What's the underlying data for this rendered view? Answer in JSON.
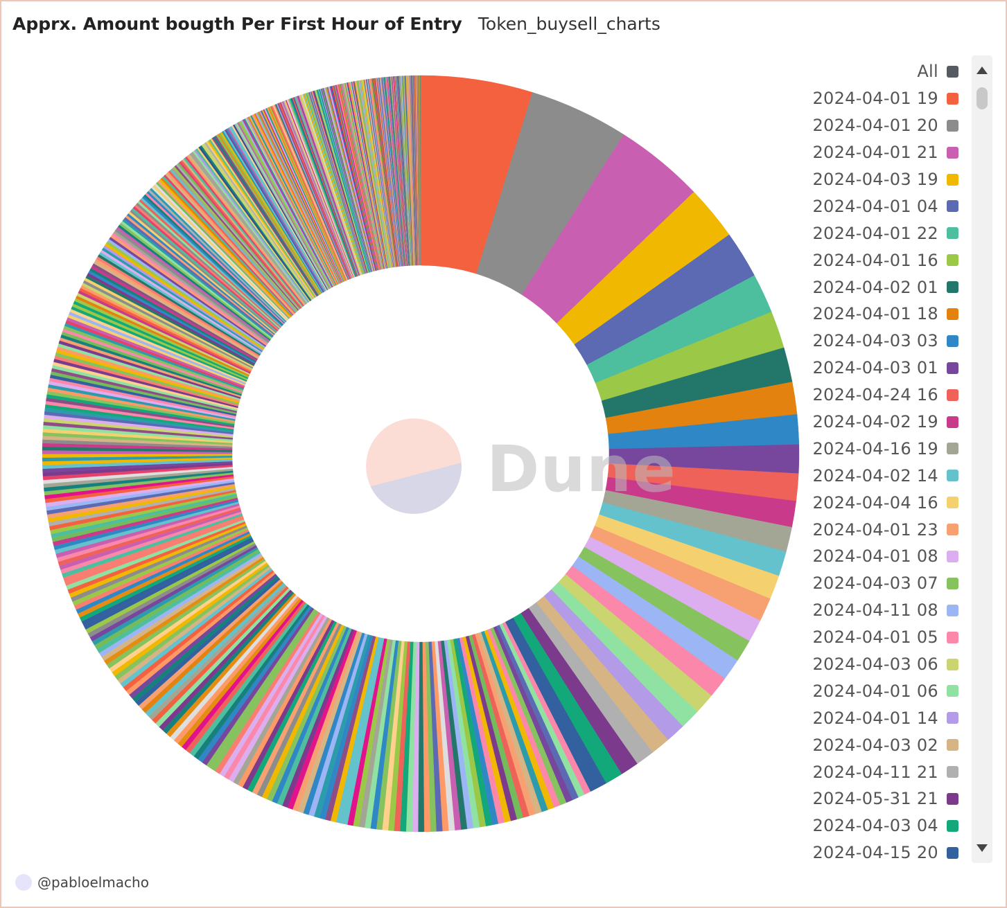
{
  "header": {
    "title": "Apprx. Amount bougth Per First Hour of Entry",
    "subtitle": "Token_buysell_charts"
  },
  "footer": {
    "author": "@pabloelmacho"
  },
  "watermark": {
    "text": "Dune"
  },
  "colors": {
    "palette": [
      "#f4613f",
      "#8c8c8c",
      "#c95fb0",
      "#f0b800",
      "#5b6ab3",
      "#4dbf9e",
      "#9bc947",
      "#23766a",
      "#e4820f",
      "#2f88c5",
      "#76479d",
      "#ee6259",
      "#c93a8a",
      "#a3a695",
      "#63c2cc",
      "#f5d06f",
      "#f7a072",
      "#dcaef0",
      "#86c25d",
      "#9cb5f5",
      "#fb87ab",
      "#cad56f",
      "#8fe2a2",
      "#b39be8",
      "#d7b484",
      "#b0b0b0",
      "#7c3a8c",
      "#13a879",
      "#33619f",
      "#e6416b",
      "#17807d",
      "#e2138a",
      "#74bb5c",
      "#2d4f8e",
      "#fa7d72",
      "#e58d12",
      "#2c9bab",
      "#8f4d86",
      "#dedede",
      "#ff9966",
      "#ffd18c"
    ]
  },
  "legend": {
    "items": [
      {
        "label": "All",
        "color": "#555b60"
      },
      {
        "label": "2024-04-01 19",
        "color": "#f4613f"
      },
      {
        "label": "2024-04-01 20",
        "color": "#8c8c8c"
      },
      {
        "label": "2024-04-01 21",
        "color": "#c95fb0"
      },
      {
        "label": "2024-04-03 19",
        "color": "#f0b800"
      },
      {
        "label": "2024-04-01 04",
        "color": "#5b6ab3"
      },
      {
        "label": "2024-04-01 22",
        "color": "#4dbf9e"
      },
      {
        "label": "2024-04-01 16",
        "color": "#9bc947"
      },
      {
        "label": "2024-04-02 01",
        "color": "#23766a"
      },
      {
        "label": "2024-04-01 18",
        "color": "#e4820f"
      },
      {
        "label": "2024-04-03 03",
        "color": "#2f88c5"
      },
      {
        "label": "2024-04-03 01",
        "color": "#76479d"
      },
      {
        "label": "2024-04-24 16",
        "color": "#ee6259"
      },
      {
        "label": "2024-04-02 19",
        "color": "#c93a8a"
      },
      {
        "label": "2024-04-16 19",
        "color": "#a3a695"
      },
      {
        "label": "2024-04-02 14",
        "color": "#63c2cc"
      },
      {
        "label": "2024-04-04 16",
        "color": "#f5d06f"
      },
      {
        "label": "2024-04-01 23",
        "color": "#f7a072"
      },
      {
        "label": "2024-04-01 08",
        "color": "#dcaef0"
      },
      {
        "label": "2024-04-03 07",
        "color": "#86c25d"
      },
      {
        "label": "2024-04-11 08",
        "color": "#9cb5f5"
      },
      {
        "label": "2024-04-01 05",
        "color": "#fb87ab"
      },
      {
        "label": "2024-04-03 06",
        "color": "#cad56f"
      },
      {
        "label": "2024-04-01 06",
        "color": "#8fe2a2"
      },
      {
        "label": "2024-04-01 14",
        "color": "#b39be8"
      },
      {
        "label": "2024-04-03 02",
        "color": "#d7b484"
      },
      {
        "label": "2024-04-11 21",
        "color": "#b0b0b0"
      },
      {
        "label": "2024-05-31 21",
        "color": "#7c3a8c"
      },
      {
        "label": "2024-04-03 04",
        "color": "#13a879"
      },
      {
        "label": "2024-04-15 20",
        "color": "#33619f"
      }
    ]
  },
  "chart_data": {
    "type": "pie",
    "donut": true,
    "title": "Apprx. Amount bougth Per First Hour of Entry",
    "legend_position": "right",
    "categories": [
      "2024-04-01 19",
      "2024-04-01 20",
      "2024-04-01 21",
      "2024-04-03 19",
      "2024-04-01 04",
      "2024-04-01 22",
      "2024-04-01 16",
      "2024-04-02 01",
      "2024-04-01 18",
      "2024-04-03 03",
      "2024-04-03 01",
      "2024-04-24 16",
      "2024-04-02 19",
      "2024-04-16 19",
      "2024-04-02 14",
      "2024-04-04 16",
      "2024-04-01 23",
      "2024-04-01 08",
      "2024-04-03 07",
      "2024-04-11 08",
      "2024-04-01 05",
      "2024-04-03 06",
      "2024-04-01 06",
      "2024-04-01 14",
      "2024-04-03 02",
      "2024-04-11 21",
      "2024-05-31 21",
      "2024-04-03 04",
      "2024-04-15 20"
    ],
    "values": [
      4.5,
      4.0,
      3.6,
      2.2,
      1.9,
      1.6,
      1.5,
      1.4,
      1.3,
      1.2,
      1.15,
      1.1,
      1.05,
      1.0,
      1.0,
      0.97,
      0.95,
      0.92,
      0.9,
      0.88,
      0.86,
      0.84,
      0.82,
      0.8,
      0.78,
      0.76,
      0.74,
      0.72,
      0.7
    ],
    "unlabeled_tail": {
      "count": 600,
      "total_share": 54.1,
      "pattern": "many thin slices continuing clockwise with decreasing size"
    }
  }
}
